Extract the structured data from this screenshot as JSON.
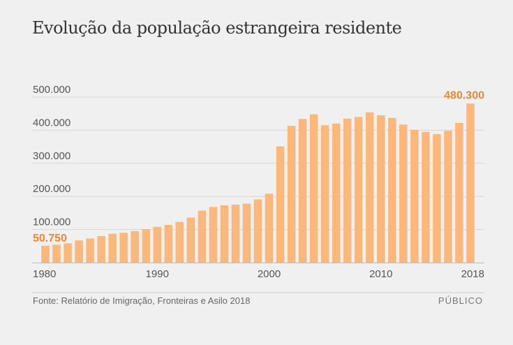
{
  "chart_data": {
    "type": "bar",
    "title": "Evolução da população estrangeira residente",
    "xlabel": "",
    "ylabel": "",
    "ylim": [
      0,
      500000
    ],
    "y_ticks": [
      100000,
      200000,
      300000,
      400000,
      500000
    ],
    "y_tick_labels": [
      "100.000",
      "200.000",
      "300.000",
      "400.000",
      "500.000"
    ],
    "x_tick_labels": [
      "1980",
      "1990",
      "2000",
      "2010",
      "2018"
    ],
    "categories": [
      "1980",
      "1981",
      "1982",
      "1983",
      "1984",
      "1985",
      "1986",
      "1987",
      "1988",
      "1989",
      "1990",
      "1991",
      "1992",
      "1993",
      "1994",
      "1995",
      "1996",
      "1997",
      "1998",
      "1999",
      "2000",
      "2001",
      "2002",
      "2003",
      "2004",
      "2005",
      "2006",
      "2007",
      "2008",
      "2009",
      "2010",
      "2011",
      "2012",
      "2013",
      "2014",
      "2015",
      "2016",
      "2017",
      "2018"
    ],
    "values": [
      50750,
      54000,
      58000,
      67000,
      73000,
      80000,
      87000,
      90000,
      95000,
      101000,
      108000,
      114000,
      123000,
      136000,
      157000,
      168000,
      173000,
      175000,
      178000,
      191000,
      208000,
      351000,
      413000,
      434000,
      448000,
      415000,
      420000,
      435000,
      440000,
      454000,
      445000,
      437000,
      417000,
      401000,
      395000,
      388000,
      398000,
      422000,
      480300
    ],
    "annotations": {
      "first": "50.750",
      "last": "480.300"
    },
    "bar_color": "#fbb87d",
    "highlight_color": "#e8893a"
  },
  "footer": {
    "source": "Fonte: Relatório de Imigração, Fronteiras e Asilo 2018",
    "brand": "PÚBLICO"
  }
}
